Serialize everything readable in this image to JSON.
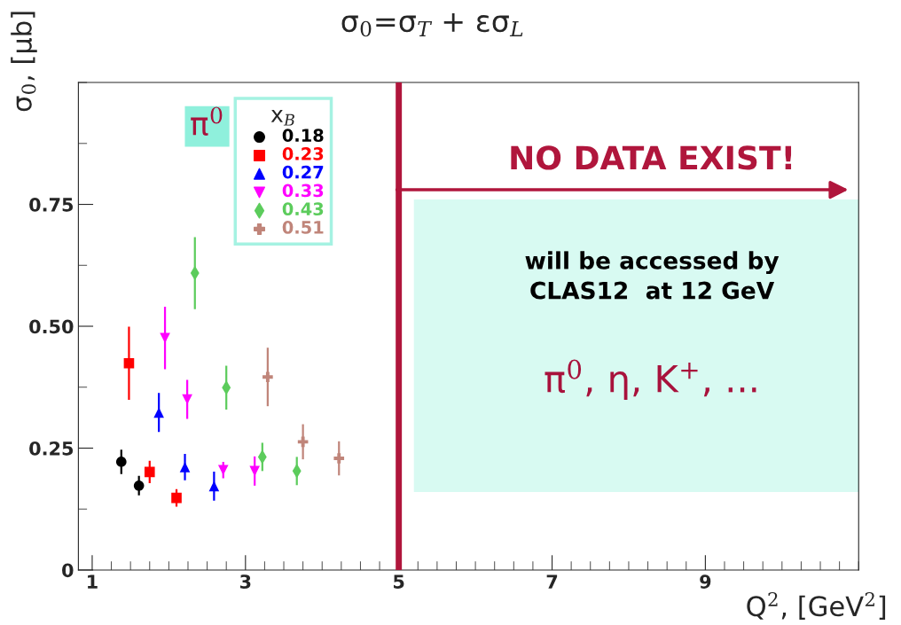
{
  "chart_data": {
    "type": "scatter",
    "title": "σ$_{0}$=σ$_{T}$ + εσ$_{L}$",
    "xlabel": "Q$^{2}$, [GeV$^{2}$]",
    "ylabel": "σ$_{0}$, [μb]",
    "legend_title": "x$_{B}$",
    "series": [
      {
        "name": "0.18",
        "color": "#000000",
        "marker": "circle",
        "x": [
          1.38,
          1.61
        ],
        "values": [
          0.222,
          0.173
        ],
        "errors": [
          0.025,
          0.02
        ]
      },
      {
        "name": "0.23",
        "color": "#ff0000",
        "marker": "square",
        "x": [
          1.48,
          1.75,
          2.1
        ],
        "values": [
          0.424,
          0.201,
          0.148
        ],
        "errors": [
          0.075,
          0.023,
          0.018
        ]
      },
      {
        "name": "0.27",
        "color": "#0000ff",
        "marker": "triangle",
        "x": [
          1.87,
          2.21,
          2.59
        ],
        "values": [
          0.323,
          0.211,
          0.172
        ],
        "errors": [
          0.04,
          0.027,
          0.03
        ]
      },
      {
        "name": "0.33",
        "color": "#ff00ff",
        "marker": "triangle_down",
        "x": [
          1.95,
          2.24,
          2.71,
          3.12
        ],
        "values": [
          0.476,
          0.35,
          0.205,
          0.203
        ],
        "errors": [
          0.064,
          0.04,
          0.017,
          0.03
        ]
      },
      {
        "name": "0.43",
        "color": "#5ccc5c",
        "marker": "diamond",
        "x": [
          2.34,
          2.75,
          3.22,
          3.67
        ],
        "values": [
          0.609,
          0.374,
          0.232,
          0.203
        ],
        "errors": [
          0.074,
          0.045,
          0.029,
          0.029
        ]
      },
      {
        "name": "0.51",
        "color": "#c0857a",
        "marker": "cross",
        "x": [
          3.29,
          3.75,
          4.22
        ],
        "values": [
          0.396,
          0.263,
          0.229
        ],
        "errors": [
          0.06,
          0.036,
          0.035
        ]
      }
    ],
    "xlim": [
      0.82,
      11
    ],
    "ylim": [
      0,
      1.0
    ],
    "xticks": [
      1,
      3,
      5,
      7,
      9
    ],
    "yticks": [
      0,
      0.25,
      {
        "value": 0.5,
        "label": "0.50"
      },
      0.75
    ],
    "ref_lines": [
      {
        "axis": "x",
        "value": 5,
        "color": "#b0163c"
      }
    ],
    "annotations": [
      "π$^{0}$",
      "NO DATA EXIST!",
      "will be accessed by\nCLAS12  at 12 GeV",
      "π$^{0}$, η, K$^{+}$, ..."
    ],
    "legend": "top left",
    "grid": false
  }
}
